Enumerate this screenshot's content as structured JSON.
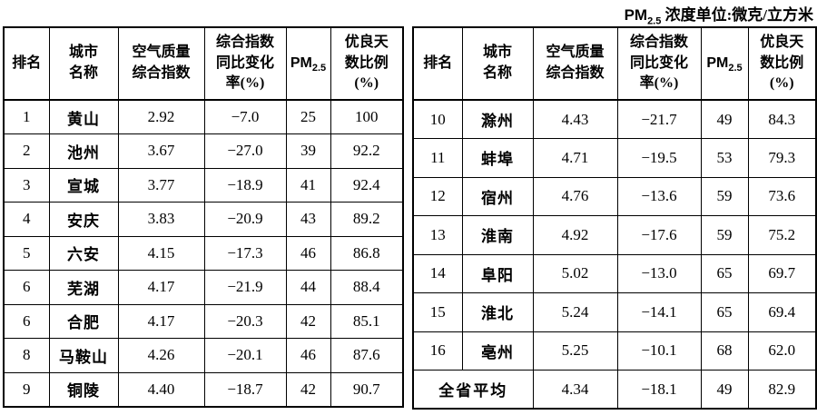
{
  "unit_note": {
    "pm_base": "PM",
    "pm_sub": "2.5",
    "text": " 浓度单位:微克/立方米"
  },
  "header_columns": [
    "排名",
    "城市\n名称",
    "空气质量\n综合指数",
    "综合指数\n同比变化\n率(%)",
    {
      "base": "PM",
      "sub": "2.5"
    },
    "优良天\n数比例\n(%)"
  ],
  "left_table": {
    "rows": [
      [
        "1",
        "黄山",
        "2.92",
        "−7.0",
        "25",
        "100"
      ],
      [
        "2",
        "池州",
        "3.67",
        "−27.0",
        "39",
        "92.2"
      ],
      [
        "3",
        "宣城",
        "3.77",
        "−18.9",
        "41",
        "92.4"
      ],
      [
        "4",
        "安庆",
        "3.83",
        "−20.9",
        "43",
        "89.2"
      ],
      [
        "5",
        "六安",
        "4.15",
        "−17.3",
        "46",
        "86.8"
      ],
      [
        "6",
        "芜湖",
        "4.17",
        "−21.9",
        "44",
        "88.4"
      ],
      [
        "6",
        "合肥",
        "4.17",
        "−20.3",
        "42",
        "85.1"
      ],
      [
        "8",
        "马鞍山",
        "4.26",
        "−20.1",
        "46",
        "87.6"
      ],
      [
        "9",
        "铜陵",
        "4.40",
        "−18.7",
        "42",
        "90.7"
      ]
    ]
  },
  "right_table": {
    "rows": [
      [
        "10",
        "滁州",
        "4.43",
        "−21.7",
        "49",
        "84.3"
      ],
      [
        "11",
        "蚌埠",
        "4.71",
        "−19.5",
        "53",
        "79.3"
      ],
      [
        "12",
        "宿州",
        "4.76",
        "−13.6",
        "59",
        "73.6"
      ],
      [
        "13",
        "淮南",
        "4.92",
        "−17.6",
        "59",
        "75.2"
      ],
      [
        "14",
        "阜阳",
        "5.02",
        "−13.0",
        "65",
        "69.7"
      ],
      [
        "15",
        "淮北",
        "5.24",
        "−14.1",
        "65",
        "69.4"
      ],
      [
        "16",
        "亳州",
        "5.25",
        "−10.1",
        "68",
        "62.0"
      ],
      [
        "全省平均",
        "4.34",
        "−18.1",
        "49",
        "82.9"
      ]
    ]
  },
  "colors": {
    "text": "#000000",
    "border": "#000000",
    "background": "#ffffff"
  }
}
